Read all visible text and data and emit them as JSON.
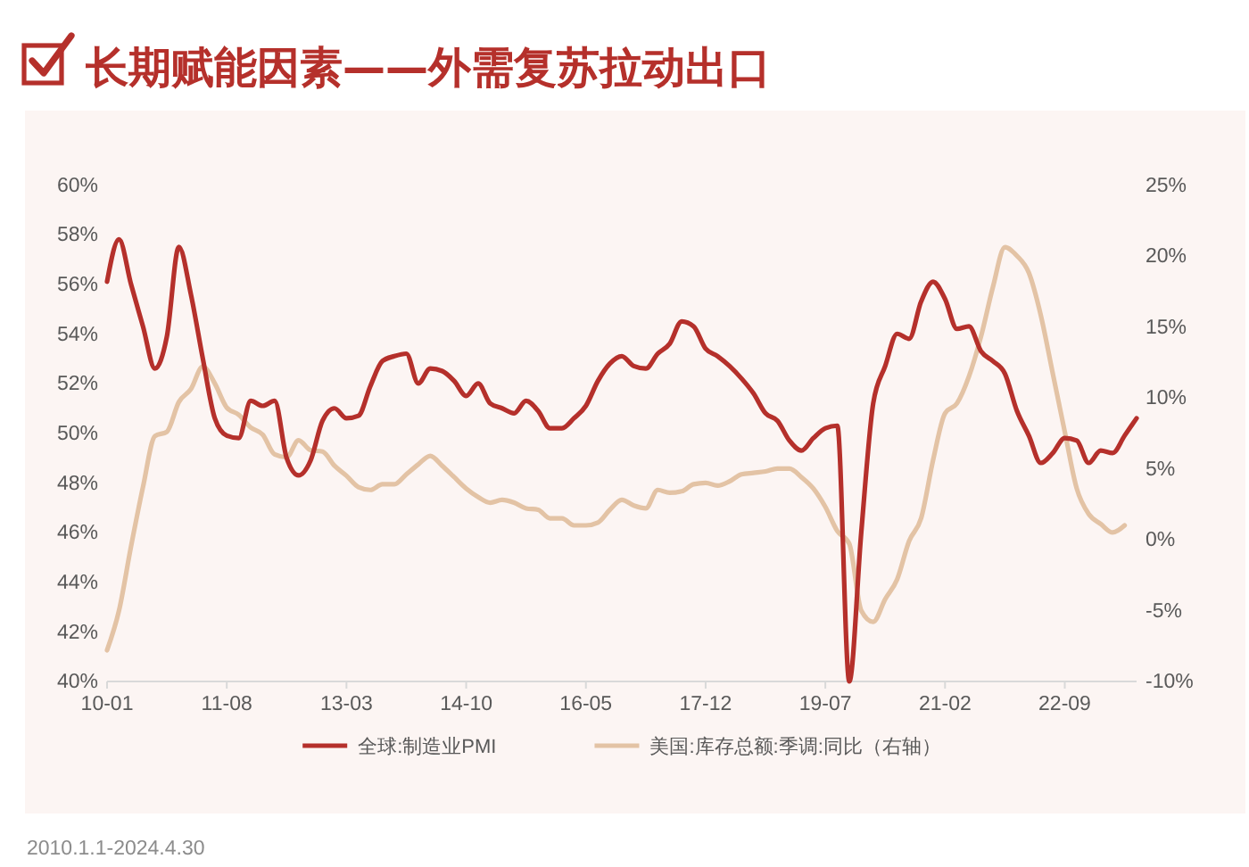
{
  "chart_data": {
    "type": "line",
    "title": "长期赋能因素——外需复苏拉动出口",
    "annotations": [
      "2010.1.1-2024.4.30"
    ],
    "categories": [
      "10-01",
      null,
      null,
      null,
      null,
      null,
      null,
      null,
      null,
      null,
      "11-08",
      null,
      null,
      null,
      null,
      null,
      null,
      null,
      null,
      null,
      "13-03",
      null,
      null,
      null,
      null,
      null,
      null,
      null,
      null,
      null,
      "14-10",
      null,
      null,
      null,
      null,
      null,
      null,
      null,
      null,
      null,
      "16-05",
      null,
      null,
      null,
      null,
      null,
      null,
      null,
      null,
      null,
      "17-12",
      null,
      null,
      null,
      null,
      null,
      null,
      null,
      null,
      null,
      "19-07",
      null,
      null,
      null,
      null,
      null,
      null,
      null,
      null,
      null,
      "21-02",
      null,
      null,
      null,
      null,
      null,
      null,
      null,
      null,
      null,
      "22-09",
      null,
      null,
      null,
      null,
      null,
      null
    ],
    "series": [
      {
        "name": "全球:制造业PMI",
        "color": "#b5302b",
        "values": [
          56.1,
          57.8,
          56.0,
          54.3,
          52.6,
          53.9,
          57.5,
          55.6,
          53.0,
          50.6,
          49.9,
          49.8,
          51.3,
          51.1,
          51.3,
          49.0,
          48.3,
          48.9,
          50.5,
          51.0,
          50.6,
          50.7,
          51.9,
          52.9,
          53.1,
          53.2,
          52.0,
          52.6,
          52.5,
          52.1,
          51.5,
          52.0,
          51.2,
          51.0,
          50.8,
          51.3,
          50.9,
          50.2,
          50.2,
          50.6,
          51.1,
          52.1,
          52.8,
          53.1,
          52.7,
          52.6,
          53.2,
          53.6,
          54.5,
          54.3,
          53.4,
          53.1,
          52.7,
          52.2,
          51.6,
          50.8,
          50.5,
          49.7,
          49.3,
          49.8,
          50.2,
          50.3,
          40.0,
          46.0,
          51.2,
          52.7,
          54.0,
          53.8,
          55.3,
          56.1,
          55.4,
          54.2,
          54.3,
          53.3,
          52.9,
          52.4,
          50.9,
          49.9,
          48.8,
          49.2,
          49.8,
          49.7,
          48.8,
          49.3,
          49.2,
          49.9,
          50.6
        ]
      },
      {
        "name": "美国:库存总额:季调:同比（右轴）",
        "color": "#e3c3a5",
        "axis": "y2",
        "values": [
          -7.8,
          -5.0,
          -0.5,
          3.7,
          7.3,
          7.6,
          9.7,
          10.6,
          12.2,
          11.0,
          9.3,
          8.8,
          7.9,
          7.4,
          6.0,
          5.8,
          7.0,
          6.3,
          6.2,
          5.2,
          4.5,
          3.7,
          3.5,
          3.9,
          3.9,
          4.6,
          5.3,
          5.9,
          5.2,
          4.4,
          3.6,
          3.0,
          2.6,
          2.8,
          2.6,
          2.2,
          2.1,
          1.5,
          1.5,
          1.0,
          1.0,
          1.2,
          2.1,
          2.8,
          2.4,
          2.2,
          3.5,
          3.3,
          3.4,
          3.9,
          4.0,
          3.8,
          4.1,
          4.6,
          4.7,
          4.8,
          5.0,
          5.0,
          4.4,
          3.6,
          2.3,
          0.6,
          -0.3,
          -5.0,
          -5.8,
          -4.2,
          -2.8,
          -0.1,
          1.5,
          5.6,
          8.9,
          9.6,
          11.5,
          14.3,
          17.8,
          20.6,
          20.0,
          18.8,
          15.8,
          11.7,
          7.6,
          3.6,
          1.8,
          1.1,
          0.5,
          1.0,
          null
        ]
      }
    ],
    "ylim": [
      40,
      60
    ],
    "yticks": [
      {
        "value": 40,
        "label": "40%"
      },
      {
        "value": 42,
        "label": "42%"
      },
      {
        "value": 44,
        "label": "44%"
      },
      {
        "value": 46,
        "label": "46%"
      },
      {
        "value": 48,
        "label": "48%"
      },
      {
        "value": 50,
        "label": "50%"
      },
      {
        "value": 52,
        "label": "52%"
      },
      {
        "value": 54,
        "label": "54%"
      },
      {
        "value": 56,
        "label": "56%"
      },
      {
        "value": 58,
        "label": "58%"
      },
      {
        "value": 60,
        "label": "60%"
      }
    ],
    "y2lim": [
      -10,
      25
    ],
    "y2ticks": [
      {
        "value": -10,
        "label": "-10%"
      },
      {
        "value": -5,
        "label": "-5%"
      },
      {
        "value": 0,
        "label": "0%"
      },
      {
        "value": 5,
        "label": "5%"
      },
      {
        "value": 10,
        "label": "10%"
      },
      {
        "value": 15,
        "label": "15%"
      },
      {
        "value": 20,
        "label": "20%"
      },
      {
        "value": 25,
        "label": "25%"
      }
    ],
    "legend": "bottom"
  }
}
